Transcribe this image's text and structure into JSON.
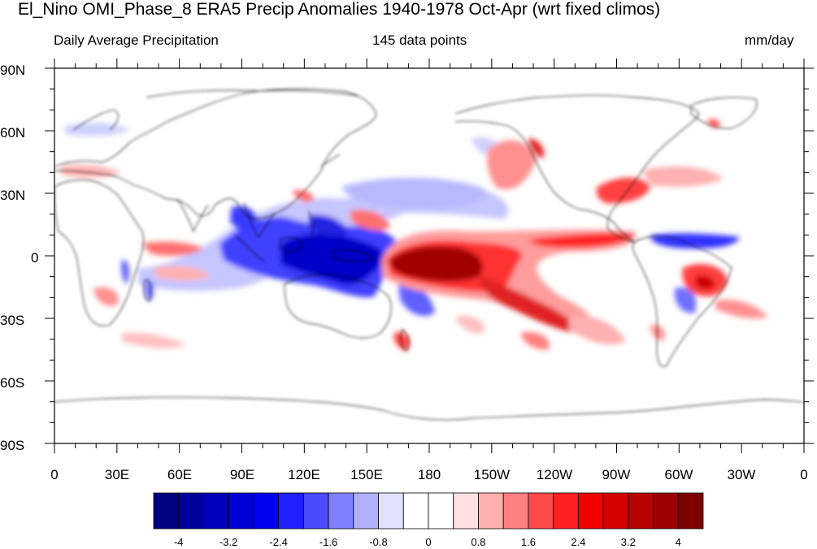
{
  "title": "El_Nino OMI_Phase_8 ERA5 Precip Anomalies 1940-1978 Oct-Apr (wrt fixed climos)",
  "subtitle_left": "Daily Average Precipitation",
  "subtitle_center": "145 data points",
  "subtitle_right": "mm/day",
  "lat_labels": [
    "90N",
    "60N",
    "30N",
    "0",
    "30S",
    "60S",
    "90S"
  ],
  "lon_labels": [
    "0",
    "30E",
    "60E",
    "90E",
    "120E",
    "150E",
    "180",
    "150W",
    "120W",
    "90W",
    "60W",
    "30W",
    "0"
  ],
  "colorbar": {
    "labels": [
      "-4",
      "-3.2",
      "-2.4",
      "-1.6",
      "-0.8",
      "0",
      "0.8",
      "1.6",
      "2.4",
      "3.2",
      "4"
    ],
    "colors": [
      "#000080",
      "#00009c",
      "#0000b8",
      "#0000d4",
      "#0000f0",
      "#2020ff",
      "#4a4aff",
      "#8080ff",
      "#b0b0ff",
      "#e0e0ff",
      "#ffffff",
      "#ffffff",
      "#ffe0e0",
      "#ffb0b0",
      "#ff8080",
      "#ff4a4a",
      "#ff2020",
      "#f00000",
      "#d40000",
      "#b80000",
      "#9c0000",
      "#800000"
    ]
  },
  "map_features": {
    "projection": "cylindrical-equidistant",
    "blue_anomaly_regions": [
      "maritime-continent",
      "indian-ocean",
      "western-pacific",
      "tropical-atlantic",
      "south-america-central"
    ],
    "red_anomaly_regions": [
      "central-east-pacific",
      "south-pacific-convergence",
      "north-america-west",
      "north-america-east",
      "brazil",
      "east-africa"
    ]
  }
}
